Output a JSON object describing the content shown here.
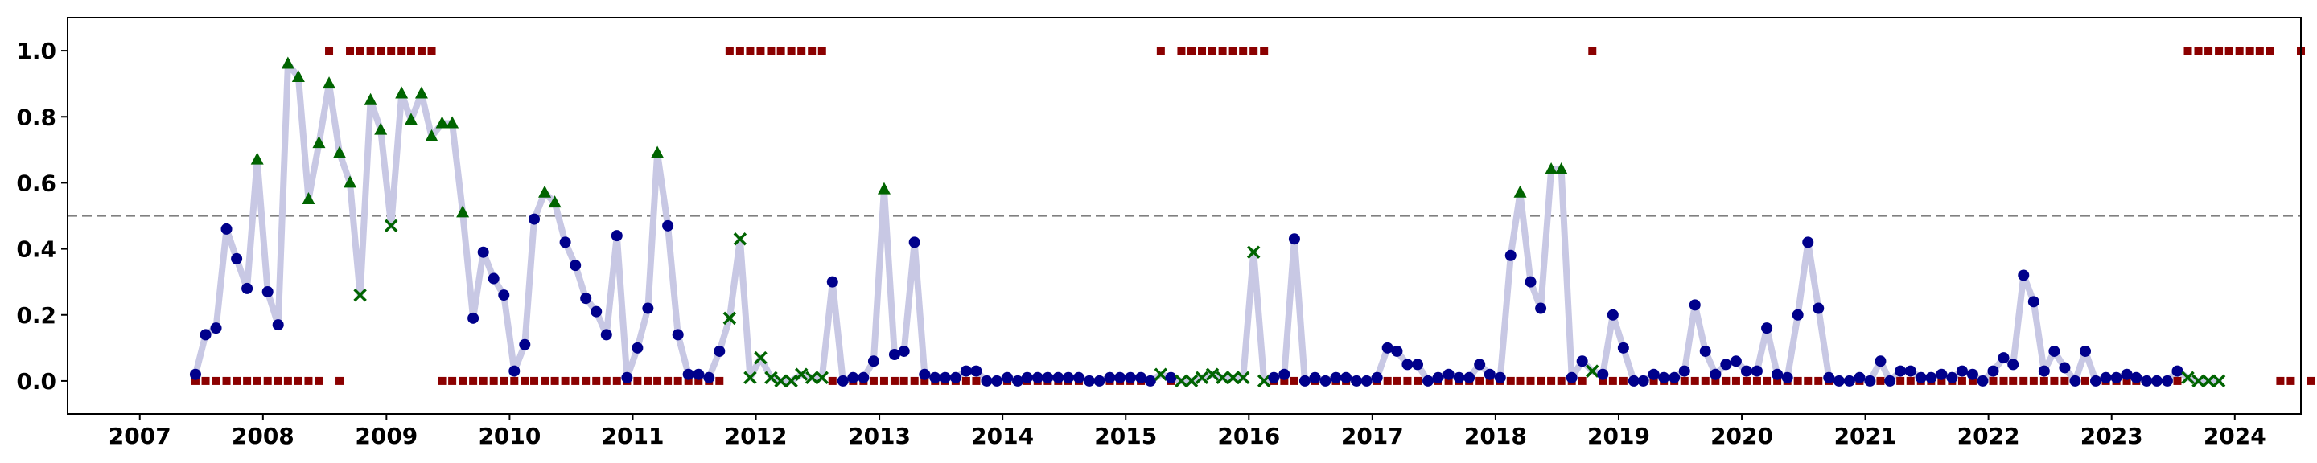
{
  "chart_data": {
    "type": "scatter",
    "title": "",
    "xlabel": "",
    "ylabel": "",
    "xlim": [
      "2006-06-01",
      "2024-07-15"
    ],
    "ylim": [
      -0.1,
      1.1
    ],
    "x_ticks": [
      "2007",
      "2008",
      "2009",
      "2010",
      "2011",
      "2012",
      "2013",
      "2014",
      "2015",
      "2016",
      "2017",
      "2018",
      "2019",
      "2020",
      "2021",
      "2022",
      "2023",
      "2024"
    ],
    "y_ticks": [
      "0.0",
      "0.2",
      "0.4",
      "0.6",
      "0.8",
      "1.0"
    ],
    "threshold": 0.5,
    "grid": false,
    "legend": "none",
    "colors": {
      "line": "#c8c8e4",
      "circle": "#00008b",
      "triangle": "#006400",
      "cross": "#006400",
      "square": "#8b0000",
      "threshold": "#808080"
    },
    "series": [
      {
        "type": "line",
        "start": "2007-06",
        "values": [
          0.02,
          0.14,
          0.16,
          0.46,
          0.37,
          0.28,
          0.67,
          0.27,
          0.17,
          0.96,
          0.92,
          0.55,
          0.72,
          0.9,
          0.69,
          0.6,
          0.26,
          0.85,
          0.76,
          0.47,
          0.87,
          0.79,
          0.87,
          0.74,
          0.78,
          0.78,
          0.51,
          0.19,
          0.39,
          0.31,
          0.26,
          0.03,
          0.11,
          0.49,
          0.57,
          0.54,
          0.42,
          0.35,
          0.25,
          0.21,
          0.14,
          0.44,
          0.01,
          0.1,
          0.22,
          0.69,
          0.47,
          0.14,
          0.02,
          0.02,
          0.01,
          0.09,
          0.19,
          0.43,
          0.01,
          0.07,
          0.01,
          0.0,
          0.0,
          0.02,
          0.01,
          0.01,
          0.3,
          0.0,
          0.01,
          0.01,
          0.06,
          0.58,
          0.08,
          0.09,
          0.42,
          0.02,
          0.01,
          0.01,
          0.01,
          0.03,
          0.03,
          0.0,
          0.0,
          0.01,
          0.0,
          0.01,
          0.01,
          0.01,
          0.01,
          0.01,
          0.01,
          0.0,
          0.0,
          0.01,
          0.01,
          0.01,
          0.01,
          0.0,
          0.02,
          0.01,
          0.0,
          0.0,
          0.01,
          0.02,
          0.01,
          0.01,
          0.01,
          0.39,
          0.0,
          0.01,
          0.02,
          0.43,
          0.0,
          0.01,
          0.0,
          0.01,
          0.01,
          0.0,
          0.0,
          0.01,
          0.1,
          0.09,
          0.05,
          0.05,
          0.0,
          0.01,
          0.02,
          0.01,
          0.01,
          0.05,
          0.02,
          0.01,
          0.38,
          0.57,
          0.3,
          0.22,
          0.64,
          0.64,
          0.01,
          0.06,
          0.03,
          0.02,
          0.2,
          0.1,
          0.0,
          0.0,
          0.02,
          0.01,
          0.01,
          0.03,
          0.23,
          0.09,
          0.02,
          0.05,
          0.06,
          0.03,
          0.03,
          0.16,
          0.02,
          0.01,
          0.2,
          0.42,
          0.22,
          0.01,
          0.0,
          0.0,
          0.01,
          0.0,
          0.06,
          0.0,
          0.03,
          0.03,
          0.01,
          0.01,
          0.02,
          0.01,
          0.03,
          0.02,
          0.0,
          0.03,
          0.07,
          0.05,
          0.32,
          0.24,
          0.03,
          0.09,
          0.04,
          0.0,
          0.09,
          0.0,
          0.01,
          0.01,
          0.02,
          0.01,
          0.0,
          0.0,
          0.0,
          0.03,
          0.01,
          0.0,
          0.0,
          0.0
        ]
      },
      {
        "type": "regime",
        "start": "2007-06",
        "values": [
          0,
          0,
          0,
          0,
          0,
          0,
          0,
          0,
          0,
          0,
          0,
          0,
          0,
          1,
          0,
          1,
          1,
          1,
          1,
          1,
          1,
          1,
          1,
          1,
          0,
          0,
          0,
          0,
          0,
          0,
          0,
          0,
          0,
          0,
          0,
          0,
          0,
          0,
          0,
          0,
          0,
          0,
          0,
          0,
          0,
          0,
          0,
          0,
          0,
          0,
          0,
          0,
          1,
          1,
          1,
          1,
          1,
          1,
          1,
          1,
          1,
          1,
          0,
          0,
          0,
          0,
          0,
          0,
          0,
          0,
          0,
          0,
          0,
          0,
          0,
          0,
          0,
          0,
          0,
          0,
          0,
          0,
          0,
          0,
          0,
          0,
          0,
          0,
          0,
          0,
          0,
          0,
          0,
          0,
          1,
          0,
          1,
          1,
          1,
          1,
          1,
          1,
          1,
          1,
          1,
          0,
          0,
          0,
          0,
          0,
          0,
          0,
          0,
          0,
          0,
          0,
          0,
          0,
          0,
          0,
          0,
          0,
          0,
          0,
          0,
          0,
          0,
          0,
          0,
          0,
          0,
          0,
          0,
          0,
          0,
          0,
          1,
          0,
          0,
          0,
          0,
          0,
          0,
          0,
          0,
          0,
          0,
          0,
          0,
          0,
          0,
          0,
          0,
          0,
          0,
          0,
          0,
          0,
          0,
          0,
          0,
          0,
          0,
          0,
          0,
          0,
          0,
          0,
          0,
          0,
          0,
          0,
          0,
          0,
          0,
          0,
          0,
          0,
          0,
          0,
          0,
          0,
          0,
          0,
          0,
          0,
          0,
          0,
          0,
          0,
          0,
          0,
          0,
          0,
          1,
          1,
          1,
          1,
          1,
          1,
          1,
          1,
          1,
          0,
          0,
          1,
          0,
          0,
          0,
          0,
          0
        ]
      }
    ]
  }
}
